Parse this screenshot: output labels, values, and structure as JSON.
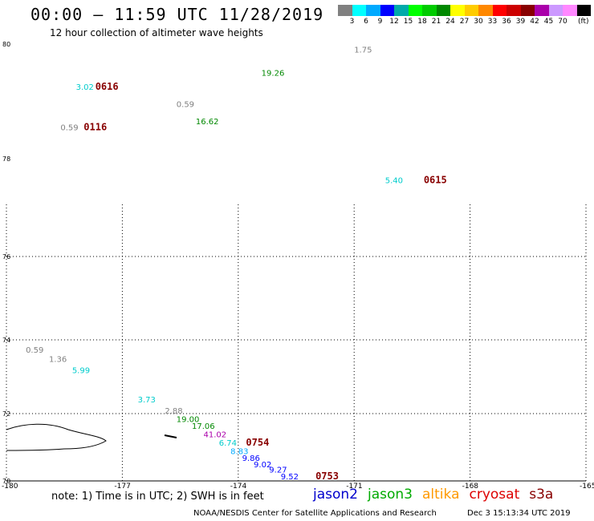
{
  "header": {
    "title": "00:00 – 11:59 UTC 11/28/2019",
    "subtitle": "12 hour collection of altimeter wave heights"
  },
  "legend": {
    "colors": [
      "#808080",
      "#00ffff",
      "#00aaff",
      "#0000ff",
      "#00aaaa",
      "#00ff00",
      "#00cc00",
      "#008800",
      "#ffff00",
      "#ffcc00",
      "#ff8800",
      "#ff0000",
      "#cc0000",
      "#880000",
      "#aa00aa",
      "#cc99ff",
      "#ff88ff",
      "#000000"
    ],
    "labels": [
      "3",
      "6",
      "9",
      "12",
      "15",
      "18",
      "21",
      "24",
      "27",
      "30",
      "33",
      "36",
      "39",
      "42",
      "45",
      "70"
    ],
    "unit": "(ft)"
  },
  "chart_data": {
    "type": "map",
    "lon_range": [
      -180,
      -165
    ],
    "lat_range": [
      70,
      80
    ],
    "lon_ticks": [
      "-180",
      "-177",
      "-174",
      "-171",
      "-168",
      "-165"
    ],
    "lat_ticks": [
      "80",
      "78",
      "76",
      "74",
      "72",
      "70"
    ],
    "grid": true,
    "swh_values": [
      {
        "label": "1.75",
        "lon": -171.0,
        "lat": 79.85,
        "color": "#808080"
      },
      {
        "label": "19.26",
        "lon": -173.4,
        "lat": 79.45,
        "color": "#008800"
      },
      {
        "label": "3.02",
        "lon": -178.2,
        "lat": 79.2,
        "color": "#00cccc"
      },
      {
        "label": "0.59",
        "lon": -175.6,
        "lat": 78.9,
        "color": "#808080"
      },
      {
        "label": "16.62",
        "lon": -175.1,
        "lat": 78.6,
        "color": "#008800"
      },
      {
        "label": "0.59",
        "lon": -178.6,
        "lat": 78.5,
        "color": "#808080"
      },
      {
        "label": "5.40",
        "lon": -170.2,
        "lat": 77.5,
        "color": "#00cccc"
      },
      {
        "label": "0.59",
        "lon": -179.5,
        "lat": 73.65,
        "color": "#808080"
      },
      {
        "label": "1.36",
        "lon": -178.9,
        "lat": 73.4,
        "color": "#808080"
      },
      {
        "label": "5.99",
        "lon": -178.3,
        "lat": 73.1,
        "color": "#00cccc"
      },
      {
        "label": "3.73",
        "lon": -176.6,
        "lat": 72.3,
        "color": "#00cccc"
      },
      {
        "label": "2.88",
        "lon": -175.9,
        "lat": 72.0,
        "color": "#808080"
      },
      {
        "label": "19.00",
        "lon": -175.6,
        "lat": 71.75,
        "color": "#008800"
      },
      {
        "label": "17.06",
        "lon": -175.2,
        "lat": 71.55,
        "color": "#008800"
      },
      {
        "label": "41.02",
        "lon": -174.9,
        "lat": 71.3,
        "color": "#aa00aa"
      },
      {
        "label": "6.74",
        "lon": -174.5,
        "lat": 71.05,
        "color": "#00cccc"
      },
      {
        "label": "8.83",
        "lon": -174.2,
        "lat": 70.8,
        "color": "#00aaff"
      },
      {
        "label": "9.86",
        "lon": -173.9,
        "lat": 70.6,
        "color": "#0000ff"
      },
      {
        "label": "9.02",
        "lon": -173.6,
        "lat": 70.4,
        "color": "#0000ff"
      },
      {
        "label": "9.27",
        "lon": -173.2,
        "lat": 70.25,
        "color": "#0000ff"
      },
      {
        "label": "9.52",
        "lon": -172.9,
        "lat": 70.05,
        "color": "#0000ff"
      }
    ],
    "time_labels": [
      {
        "label": "0616",
        "lon": -177.7,
        "lat": 79.2
      },
      {
        "label": "0116",
        "lon": -178.0,
        "lat": 78.5
      },
      {
        "label": "0615",
        "lon": -169.2,
        "lat": 77.5
      },
      {
        "label": "0754",
        "lon": -173.8,
        "lat": 71.05
      },
      {
        "label": "0753",
        "lon": -172.0,
        "lat": 70.05
      }
    ]
  },
  "footer": {
    "note": "note: 1) Time is in UTC; 2) SWH is in feet",
    "satellites": [
      {
        "name": "jason2",
        "color": "#0000cc"
      },
      {
        "name": "jason3",
        "color": "#00aa00"
      },
      {
        "name": "altika",
        "color": "#ff9900"
      },
      {
        "name": "cryosat",
        "color": "#dd0000"
      },
      {
        "name": "s3a",
        "color": "#880000"
      }
    ],
    "credit": "NOAA/NESDIS Center for Satellite Applications and Research",
    "timestamp": "Dec  3 15:13:34 UTC 2019"
  }
}
